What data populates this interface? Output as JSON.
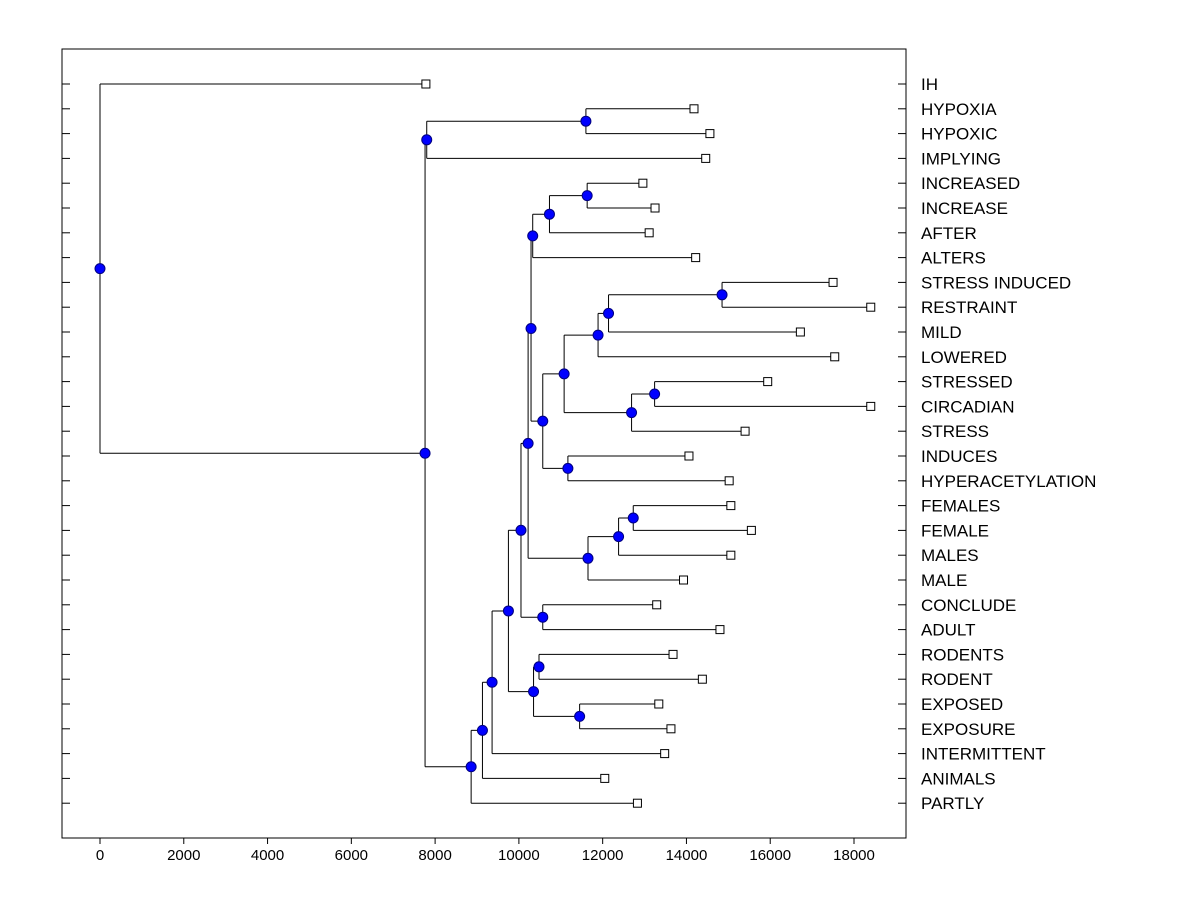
{
  "chart_data": {
    "type": "dendrogram",
    "title": "",
    "xlabel": "",
    "ylabel": "",
    "xlim": [
      -900,
      19300
    ],
    "x_ticks": [
      0,
      2000,
      4000,
      6000,
      8000,
      10000,
      12000,
      14000,
      16000,
      18000
    ],
    "x_tick_labels": [
      "0",
      "2000",
      "4000",
      "6000",
      "8000",
      "10000",
      "12000",
      "14000",
      "16000",
      "18000"
    ],
    "grid": false,
    "leaf_labels_position": "right",
    "colors": {
      "node": "#0000ff",
      "node_stroke": "#000080",
      "line": "#000000",
      "leaf_fill": "#ffffff"
    },
    "leaves": [
      {
        "label": "IH",
        "x": 7780
      },
      {
        "label": "HYPOXIA",
        "x": 14180
      },
      {
        "label": "HYPOXIC",
        "x": 14560
      },
      {
        "label": "IMPLYING",
        "x": 14460
      },
      {
        "label": "INCREASED",
        "x": 12960
      },
      {
        "label": "INCREASE",
        "x": 13250
      },
      {
        "label": "AFTER",
        "x": 13110
      },
      {
        "label": "ALTERS",
        "x": 14220
      },
      {
        "label": "STRESS INDUCED",
        "x": 17500
      },
      {
        "label": "RESTRAINT",
        "x": 18400
      },
      {
        "label": "MILD",
        "x": 16720
      },
      {
        "label": "LOWERED",
        "x": 17540
      },
      {
        "label": "STRESSED",
        "x": 15940
      },
      {
        "label": "CIRCADIAN",
        "x": 18400
      },
      {
        "label": "STRESS",
        "x": 15400
      },
      {
        "label": "INDUCES",
        "x": 14060
      },
      {
        "label": "HYPERACETYLATION",
        "x": 15020
      },
      {
        "label": "FEMALES",
        "x": 15060
      },
      {
        "label": "FEMALE",
        "x": 15550
      },
      {
        "label": "MALES",
        "x": 15060
      },
      {
        "label": "MALE",
        "x": 13930
      },
      {
        "label": "CONCLUDE",
        "x": 13290
      },
      {
        "label": "ADULT",
        "x": 14800
      },
      {
        "label": "RODENTS",
        "x": 13680
      },
      {
        "label": "RODENT",
        "x": 14380
      },
      {
        "label": "EXPOSED",
        "x": 13340
      },
      {
        "label": "EXPOSURE",
        "x": 13630
      },
      {
        "label": "INTERMITTENT",
        "x": 13480
      },
      {
        "label": "ANIMALS",
        "x": 12050
      },
      {
        "label": "PARTLY",
        "x": 12830
      }
    ],
    "nodes": [
      {
        "id": "n_root",
        "x": 0,
        "children": [
          "L0",
          "n_b"
        ]
      },
      {
        "id": "n_a",
        "x": 7800,
        "children": [
          "n_hyp",
          "L3"
        ]
      },
      {
        "id": "n_hyp",
        "x": 11600,
        "children": [
          "L1",
          "L2"
        ]
      },
      {
        "id": "n_b",
        "x": 7760,
        "children": [
          "n_a",
          "n_c"
        ]
      },
      {
        "id": "n_inc",
        "x": 11630,
        "children": [
          "L4",
          "L5"
        ]
      },
      {
        "id": "n_inc2",
        "x": 10730,
        "children": [
          "n_inc",
          "L6"
        ]
      },
      {
        "id": "n_inc3",
        "x": 10330,
        "children": [
          "n_inc2",
          "L7"
        ]
      },
      {
        "id": "n_si",
        "x": 14850,
        "children": [
          "L8",
          "L9"
        ]
      },
      {
        "id": "n_si2",
        "x": 12140,
        "children": [
          "n_si",
          "L10"
        ]
      },
      {
        "id": "n_si3",
        "x": 11890,
        "children": [
          "n_si2",
          "L11"
        ]
      },
      {
        "id": "n_str",
        "x": 13240,
        "children": [
          "L12",
          "L13"
        ]
      },
      {
        "id": "n_str2",
        "x": 12690,
        "children": [
          "n_str",
          "L14"
        ]
      },
      {
        "id": "n_mid",
        "x": 11080,
        "children": [
          "n_si3",
          "n_str2"
        ]
      },
      {
        "id": "n_ind",
        "x": 11170,
        "children": [
          "L15",
          "L16"
        ]
      },
      {
        "id": "n_mid2",
        "x": 10570,
        "children": [
          "n_mid",
          "n_ind"
        ]
      },
      {
        "id": "n_big",
        "x": 10290,
        "children": [
          "n_inc3",
          "n_mid2"
        ]
      },
      {
        "id": "n_fem",
        "x": 12730,
        "children": [
          "L17",
          "L18"
        ]
      },
      {
        "id": "n_fem2",
        "x": 12380,
        "children": [
          "n_fem",
          "L19"
        ]
      },
      {
        "id": "n_fem3",
        "x": 11650,
        "children": [
          "n_fem2",
          "L20"
        ]
      },
      {
        "id": "n_big2",
        "x": 10220,
        "children": [
          "n_big",
          "n_fem3"
        ]
      },
      {
        "id": "n_con",
        "x": 10570,
        "children": [
          "L21",
          "L22"
        ]
      },
      {
        "id": "n_big3",
        "x": 10050,
        "children": [
          "n_big2",
          "n_con"
        ]
      },
      {
        "id": "n_rod",
        "x": 10480,
        "children": [
          "L23",
          "L24"
        ]
      },
      {
        "id": "n_exp",
        "x": 11450,
        "children": [
          "L25",
          "L26"
        ]
      },
      {
        "id": "n_re",
        "x": 10350,
        "children": [
          "n_rod",
          "n_exp"
        ]
      },
      {
        "id": "n_big4",
        "x": 9750,
        "children": [
          "n_big3",
          "n_re"
        ]
      },
      {
        "id": "n_int",
        "x": 9360,
        "children": [
          "n_big4",
          "L27"
        ]
      },
      {
        "id": "n_ani",
        "x": 9130,
        "children": [
          "n_int",
          "L28"
        ]
      },
      {
        "id": "n_c",
        "x": 8860,
        "children": [
          "n_ani",
          "L29"
        ]
      }
    ]
  }
}
